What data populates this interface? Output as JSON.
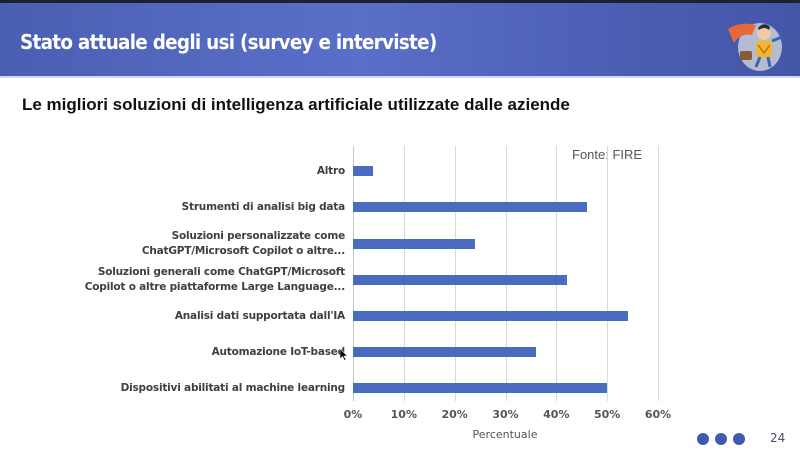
{
  "header": {
    "title": "Stato attuale degli usi (survey e interviste)",
    "logo_icon": "superhero-mascot-icon"
  },
  "subtitle": "Le migliori soluzioni di intelligenza artificiale utilizzate dalle aziende",
  "source": "Fonte: FIRE",
  "footer": {
    "dots": 3,
    "page_number": "24"
  },
  "colors": {
    "header_bg": "#5164be",
    "bar": "#4a6cc0",
    "dots": "#3f5bb0"
  },
  "chart_data": {
    "type": "bar",
    "orientation": "horizontal",
    "title": "Le migliori soluzioni di intelligenza artificiale utilizzate dalle aziende",
    "categories": [
      "Altro",
      "Strumenti di analisi big data",
      "Soluzioni personalizzate come ChatGPT/Microsoft Copilot o altre...",
      "Soluzioni generali come ChatGPT/Microsoft Copilot o altre piattaforme Large Language...",
      "Analisi dati supportata dall'IA",
      "Automazione IoT-based",
      "Dispositivi abilitati al machine learning"
    ],
    "category_lines": [
      [
        "Altro"
      ],
      [
        "Strumenti di analisi big data"
      ],
      [
        "Soluzioni personalizzate come",
        "ChatGPT/Microsoft Copilot o altre..."
      ],
      [
        "Soluzioni generali come ChatGPT/Microsoft",
        "Copilot o altre piattaforme Large Language..."
      ],
      [
        "Analisi dati supportata dall'IA"
      ],
      [
        "Automazione IoT-based"
      ],
      [
        "Dispositivi abilitati al machine learning"
      ]
    ],
    "values": [
      4,
      46,
      24,
      42,
      54,
      36,
      50
    ],
    "xlabel": "Percentuale",
    "ylabel": "",
    "xlim": [
      0,
      60
    ],
    "xticks": [
      "0%",
      "10%",
      "20%",
      "30%",
      "40%",
      "50%",
      "60%"
    ],
    "grid": true,
    "annotations": [
      "Fonte: FIRE"
    ]
  }
}
